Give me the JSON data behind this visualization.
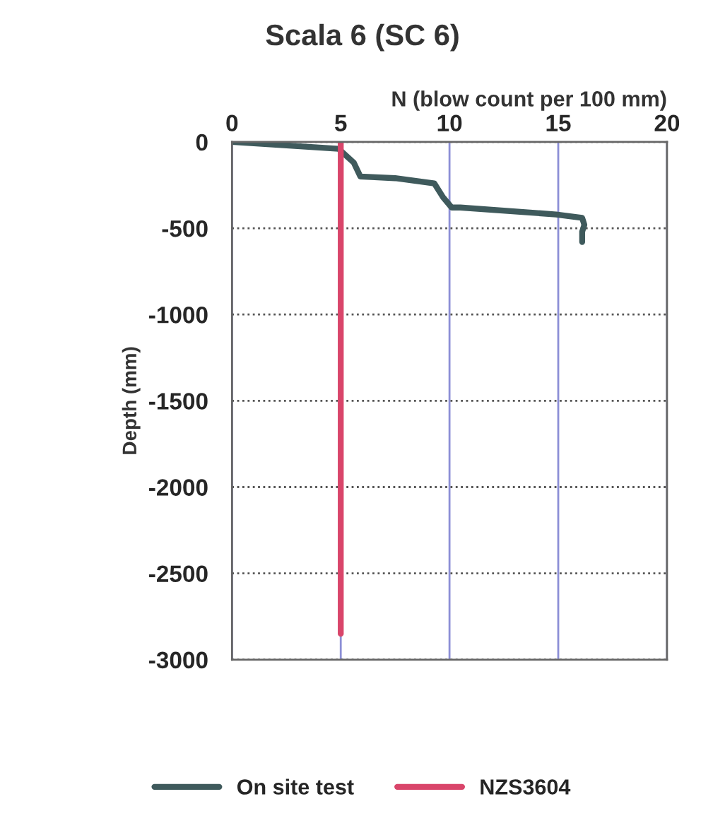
{
  "chart_data": {
    "type": "line",
    "title": "Scala 6 (SC 6)",
    "xlabel": "N (blow count per 100 mm)",
    "ylabel": "Depth (mm)",
    "series": [
      {
        "name": "On site test",
        "color": "#3f5a5c",
        "x": [
          0,
          4.9,
          5.6,
          5.9,
          7.5,
          9.3,
          9.7,
          10.1,
          10.5,
          14.9,
          16.1,
          16.2,
          16.1,
          16.1
        ],
        "values": [
          0,
          -40,
          -120,
          -200,
          -210,
          -240,
          -320,
          -380,
          -380,
          -420,
          -440,
          -480,
          -520,
          -580
        ]
      },
      {
        "name": "NZS3604",
        "color": "#d9456a",
        "x": [
          5,
          5
        ],
        "values": [
          0,
          -2850
        ]
      }
    ],
    "xlim": [
      0,
      20
    ],
    "xticks": [
      0,
      5,
      10,
      15,
      20
    ],
    "ylim": [
      -3000,
      0
    ],
    "yticks": [
      -3000,
      -2500,
      -2000,
      -1500,
      -1000,
      -500,
      0
    ],
    "grid": true,
    "legend": "bottom",
    "marker": "none",
    "line_style": "solid"
  }
}
